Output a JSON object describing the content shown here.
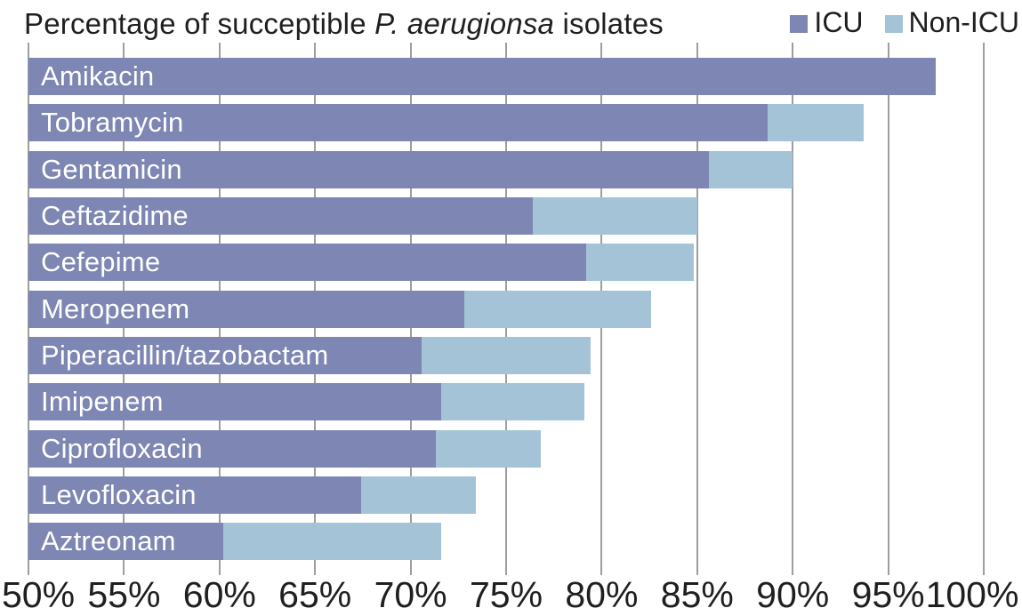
{
  "title": {
    "prefix": "Percentage of succeptible ",
    "italic": "P. aerugionsa",
    "suffix": " isolates"
  },
  "legend": [
    {
      "label": "ICU",
      "color": "#7E86B3"
    },
    {
      "label": "Non-ICU",
      "color": "#A4C3D6"
    }
  ],
  "colors": {
    "icu": "#7E86B3",
    "non_icu": "#A4C3D6",
    "gridline": "#9E9EA1",
    "bar_label_text": "#FFFFFF",
    "axis_text": "#1F1F1F",
    "background": "#FFFFFF"
  },
  "chart_data": {
    "type": "bar",
    "orientation": "horizontal",
    "overlay": true,
    "title": "Percentage of succeptible P. aerugionsa isolates",
    "categories": [
      "Amikacin",
      "Tobramycin",
      "Gentamicin",
      "Ceftazidime",
      "Cefepime",
      "Meropenem",
      "Piperacillin/tazobactam",
      "Imipenem",
      "Ciprofloxacin",
      "Levofloxacin",
      "Aztreonam"
    ],
    "series": [
      {
        "name": "ICU",
        "values": [
          97.5,
          88.7,
          85.6,
          76.4,
          79.2,
          72.8,
          70.6,
          71.6,
          71.3,
          67.4,
          60.2
        ]
      },
      {
        "name": "Non-ICU",
        "values": [
          null,
          93.7,
          90.0,
          85.0,
          84.8,
          82.6,
          79.4,
          79.1,
          76.8,
          73.4,
          71.6
        ]
      }
    ],
    "xlim": [
      50,
      100
    ],
    "x_ticks": [
      "50%",
      "55%",
      "60%",
      "65%",
      "70%",
      "75%",
      "80%",
      "85%",
      "90%",
      "95%",
      "100%"
    ],
    "xlabel": "",
    "ylabel": "",
    "grid": "vertical",
    "legend_position": "top-right"
  }
}
